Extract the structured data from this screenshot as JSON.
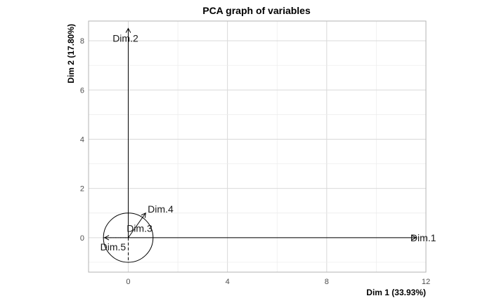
{
  "chart_data": {
    "type": "scatter",
    "title": "PCA graph of variables",
    "xlabel": "Dim 1 (33.93%)",
    "ylabel": "Dim 2 (17.80%)",
    "xlim": [
      -1.6,
      12.0
    ],
    "ylim": [
      -1.4,
      8.8
    ],
    "xticks": [
      0,
      4,
      8,
      12
    ],
    "yticks": [
      0,
      2,
      4,
      6,
      8
    ],
    "grid": true,
    "unit_circle": true,
    "variables": [
      {
        "name": "Dim.1",
        "x": 11.6,
        "y": 0.0,
        "dashed": false
      },
      {
        "name": "Dim.2",
        "x": 0.0,
        "y": 8.5,
        "dashed": false
      },
      {
        "name": "Dim.3",
        "x": 0.0,
        "y": 0.1,
        "dashed": false
      },
      {
        "name": "Dim.4",
        "x": 0.7,
        "y": 1.0,
        "dashed": false
      },
      {
        "name": "Dim.5",
        "x": -0.95,
        "y": 0.0,
        "dashed": true
      }
    ]
  }
}
